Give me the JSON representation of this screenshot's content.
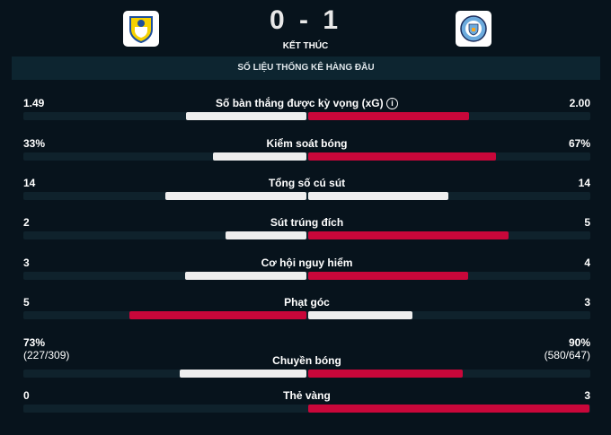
{
  "match": {
    "home_score": "0",
    "separator": "-",
    "away_score": "1",
    "status": "KẾT THÚC",
    "home_logo": "leeds-united-crest",
    "away_logo": "manchester-city-crest"
  },
  "section_title": "SỐ LIỆU THỐNG KÊ HÀNG ĐẦU",
  "colors": {
    "leader": "#c8073a",
    "other": "#eeeeee",
    "track": "#0f222c"
  },
  "stats": [
    {
      "label": "Số bàn thắng được kỳ vọng (xG)",
      "home": "1.49",
      "away": "2.00",
      "home_value": 1.49,
      "away_value": 2.0,
      "info_icon": true
    },
    {
      "label": "Kiểm soát bóng",
      "home": "33%",
      "away": "67%",
      "home_value": 33,
      "away_value": 67
    },
    {
      "label": "Tổng số cú sút",
      "home": "14",
      "away": "14",
      "home_value": 14,
      "away_value": 14
    },
    {
      "label": "Sút trúng đích",
      "home": "2",
      "away": "5",
      "home_value": 2,
      "away_value": 5
    },
    {
      "label": "Cơ hội nguy hiểm",
      "home": "3",
      "away": "4",
      "home_value": 3,
      "away_value": 4
    },
    {
      "label": "Phạt góc",
      "home": "5",
      "away": "3",
      "home_value": 5,
      "away_value": 3
    },
    {
      "label": "Chuyền bóng",
      "home": "73%",
      "away": "90%",
      "home_sub": "(227/309)",
      "away_sub": "(580/647)",
      "home_value": 73,
      "away_value": 90
    },
    {
      "label": "Thẻ vàng",
      "home": "0",
      "away": "3",
      "home_value": 0,
      "away_value": 3
    }
  ]
}
